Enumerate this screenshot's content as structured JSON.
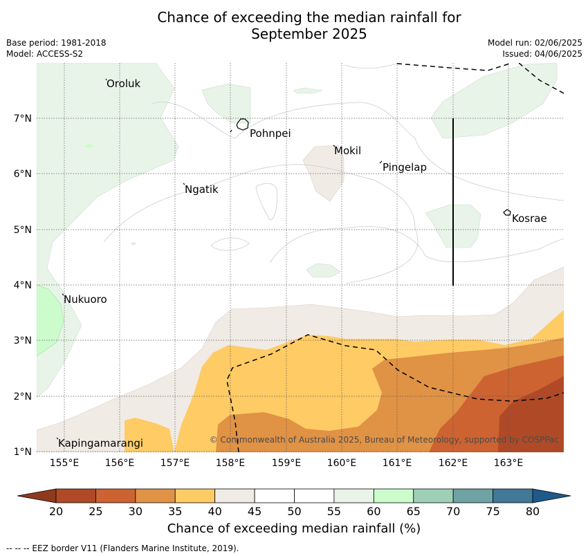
{
  "title": {
    "line1": "Chance of exceeding the median rainfall for",
    "line2": "September 2025"
  },
  "meta": {
    "base_period": "Base period: 1981-2018",
    "model": "Model: ACCESS-S2",
    "model_run": "Model run: 02/06/2025",
    "issued": "Issued: 04/06/2025"
  },
  "map": {
    "longitudes": [
      "155°E",
      "156°E",
      "157°E",
      "158°E",
      "159°E",
      "160°E",
      "161°E",
      "162°E",
      "163°E"
    ],
    "latitudes": [
      "7°N",
      "6°N",
      "5°N",
      "4°N",
      "3°N",
      "2°N",
      "1°N"
    ],
    "places": [
      "Oroluk",
      "Pohnpei",
      "Mokil",
      "Pingelap",
      "Ngatik",
      "Kosrae",
      "Nukuoro",
      "Kapingamarangi"
    ],
    "copyright": "© Commonwealth of Australia 2025, Bureau of Meteorology, supported by COSPPac"
  },
  "colorbar": {
    "ticks": [
      "20",
      "25",
      "30",
      "35",
      "40",
      "45",
      "50",
      "55",
      "60",
      "65",
      "70",
      "75",
      "80"
    ],
    "colors": [
      "#b04a26",
      "#cc6331",
      "#e09245",
      "#fecb65",
      "#f1ebe5",
      "#ffffff",
      "#ffffff",
      "#e9f4e9",
      "#ccfccc",
      "#9fcfb7",
      "#6fa2a4",
      "#417996"
    ],
    "under_color": "#8f3a1e",
    "over_color": "#1f5a8c",
    "label": "Chance of exceeding median rainfall (%)"
  },
  "footer": {
    "legend": "--  --  -- EEZ border V11 (Flanders Marine Institute, 2019)."
  }
}
